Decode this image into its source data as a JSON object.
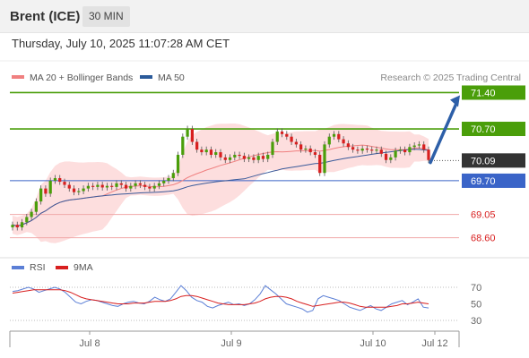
{
  "header": {
    "instrument": "Brent (ICE)",
    "timeframe": "30 MIN"
  },
  "datetime": "Thursday, July 10, 2025 11:07:28 AM CET",
  "credit": "Research © 2025 Trading Central",
  "legend_main": [
    {
      "label": "MA 20 + Bollinger Bands",
      "color": "#f08080"
    },
    {
      "label": "MA 50",
      "color": "#2b5a9a"
    }
  ],
  "legend_rsi": [
    {
      "label": "RSI",
      "color": "#5b7fd6"
    },
    {
      "label": "9MA",
      "color": "#d81f1f"
    }
  ],
  "colors": {
    "resistance": "#4a9e0a",
    "support": "#f0a8a8",
    "pivot": "#3a64c8",
    "current": "#333333",
    "bullish": "#4a9e0a",
    "bearish": "#d81f1f",
    "bands_fill": "#fddada",
    "arrow": "#2d5fa8"
  },
  "chart_data": [
    {
      "type": "candlestick",
      "title": "Brent (ICE)",
      "timeframe": "30 MIN",
      "x_ticks": [
        "Jul 8",
        "Jul 9",
        "Jul 10",
        "Jul 12"
      ],
      "ylim": [
        68.3,
        71.65
      ],
      "levels": [
        {
          "value": 71.4,
          "label": "71.40",
          "kind": "resistance"
        },
        {
          "value": 70.7,
          "label": "70.70",
          "kind": "resistance"
        },
        {
          "value": 70.09,
          "label": "70.09",
          "kind": "current"
        },
        {
          "value": 69.7,
          "label": "69.70",
          "kind": "pivot"
        },
        {
          "value": 69.05,
          "label": "69.05",
          "kind": "support"
        },
        {
          "value": 68.6,
          "label": "68.60",
          "kind": "support"
        }
      ],
      "projection": {
        "from": 70.05,
        "to": 71.4,
        "direction": "up"
      },
      "closes": [
        68.85,
        68.8,
        68.9,
        69.0,
        69.1,
        69.3,
        69.55,
        69.45,
        69.7,
        69.75,
        69.68,
        69.62,
        69.55,
        69.48,
        69.5,
        69.55,
        69.6,
        69.58,
        69.62,
        69.57,
        69.6,
        69.58,
        69.65,
        69.62,
        69.55,
        69.6,
        69.65,
        69.62,
        69.58,
        69.55,
        69.6,
        69.65,
        69.7,
        69.75,
        69.85,
        70.2,
        70.55,
        70.7,
        70.45,
        70.3,
        70.25,
        70.3,
        70.2,
        70.25,
        70.15,
        70.1,
        70.15,
        70.2,
        70.18,
        70.12,
        70.15,
        70.1,
        70.18,
        70.12,
        70.2,
        70.45,
        70.65,
        70.6,
        70.55,
        70.45,
        70.4,
        70.3,
        70.32,
        70.25,
        70.2,
        69.85,
        70.4,
        70.55,
        70.6,
        70.5,
        70.42,
        70.35,
        70.3,
        70.28,
        70.32,
        70.3,
        70.28,
        70.3,
        70.22,
        70.1,
        70.15,
        70.28,
        70.3,
        70.25,
        70.35,
        70.38,
        70.4,
        70.3,
        70.1
      ]
    },
    {
      "type": "line",
      "title": "RSI",
      "series": [
        {
          "name": "RSI"
        },
        {
          "name": "9MA"
        }
      ],
      "ylim": [
        30,
        70
      ],
      "y_ticks": [
        70,
        50,
        30
      ],
      "rsi": [
        65,
        66,
        68,
        70,
        68,
        64,
        66,
        68,
        70,
        68,
        64,
        58,
        52,
        50,
        53,
        55,
        54,
        52,
        50,
        48,
        47,
        50,
        52,
        53,
        51,
        50,
        53,
        58,
        55,
        53,
        56,
        64,
        72,
        66,
        58,
        54,
        52,
        47,
        45,
        48,
        50,
        52,
        49,
        50,
        48,
        50,
        55,
        62,
        72,
        67,
        62,
        56,
        50,
        48,
        46,
        44,
        40,
        42,
        56,
        60,
        58,
        56,
        54,
        50,
        46,
        44,
        42,
        45,
        48,
        44,
        42,
        46,
        50,
        52,
        54,
        49,
        52,
        56,
        46,
        45
      ],
      "ma9": [
        63,
        64,
        65,
        66,
        67,
        67,
        67,
        67,
        67,
        67,
        66,
        64,
        61,
        58,
        56,
        55,
        54,
        53,
        52,
        51,
        50,
        50,
        50,
        51,
        51,
        51,
        52,
        53,
        53,
        53,
        54,
        56,
        59,
        60,
        60,
        59,
        57,
        55,
        53,
        51,
        50,
        49,
        49,
        49,
        49,
        50,
        51,
        53,
        56,
        58,
        59,
        59,
        58,
        56,
        53,
        51,
        49,
        47,
        48,
        49,
        50,
        51,
        52,
        52,
        51,
        49,
        47,
        46,
        46,
        46,
        46,
        46,
        47,
        48,
        50,
        50,
        51,
        52,
        51,
        50
      ]
    }
  ]
}
